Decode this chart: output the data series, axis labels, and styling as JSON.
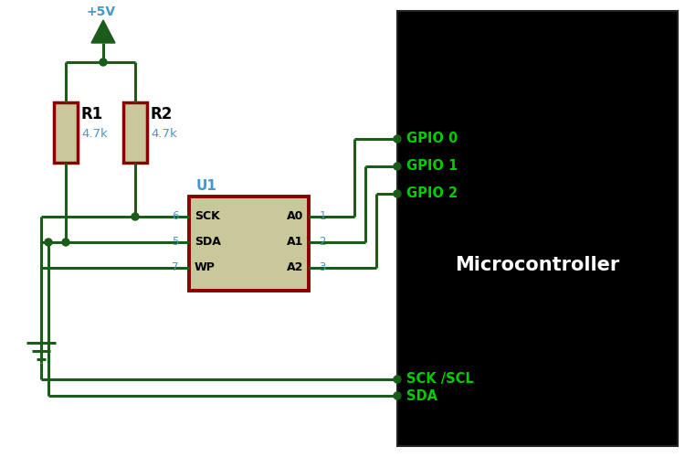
{
  "bg_color": "#ffffff",
  "wire_color": "#1a5c1a",
  "resistor_body": "#c8c89a",
  "resistor_border": "#8b0000",
  "ic_body": "#c8c89a",
  "ic_border": "#8b0000",
  "mc_bg": "#000000",
  "pin_text_color": "#4499cc",
  "vcc_text": "+5V",
  "r1_label": "R1",
  "r1_val": "4.7k",
  "r2_label": "R2",
  "r2_val": "4.7k",
  "u1_label": "U1",
  "mc_label": "Microcontroller",
  "gpio_labels": [
    "GPIO 0",
    "GPIO 1",
    "GPIO 2"
  ],
  "sck_label": "SCK /SCL",
  "sda_label": "SDA",
  "ic_pins_left": [
    [
      "SCK",
      "6"
    ],
    [
      "SDA",
      "5"
    ],
    [
      "WP",
      "7"
    ]
  ],
  "ic_pins_right": [
    [
      "A0",
      "1"
    ],
    [
      "A1",
      "2"
    ],
    [
      "A2",
      "3"
    ]
  ]
}
